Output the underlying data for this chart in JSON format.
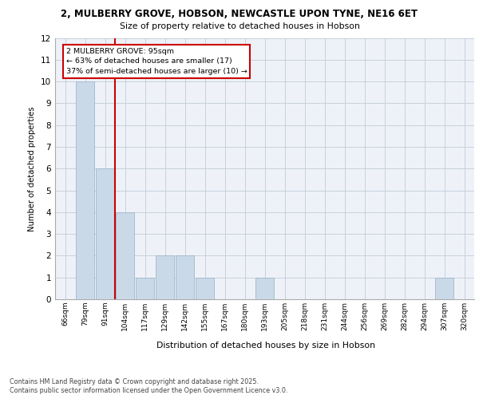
{
  "title1": "2, MULBERRY GROVE, HOBSON, NEWCASTLE UPON TYNE, NE16 6ET",
  "title2": "Size of property relative to detached houses in Hobson",
  "xlabel": "Distribution of detached houses by size in Hobson",
  "ylabel": "Number of detached properties",
  "categories": [
    "66sqm",
    "79sqm",
    "91sqm",
    "104sqm",
    "117sqm",
    "129sqm",
    "142sqm",
    "155sqm",
    "167sqm",
    "180sqm",
    "193sqm",
    "205sqm",
    "218sqm",
    "231sqm",
    "244sqm",
    "256sqm",
    "269sqm",
    "282sqm",
    "294sqm",
    "307sqm",
    "320sqm"
  ],
  "values": [
    0,
    10,
    6,
    4,
    1,
    2,
    2,
    1,
    0,
    0,
    1,
    0,
    0,
    0,
    0,
    0,
    0,
    0,
    0,
    1,
    0
  ],
  "bar_color": "#c9d9e8",
  "bar_edge_color": "#a0b8cc",
  "grid_color": "#c8d0dc",
  "bg_color": "#eef2f8",
  "vline_x": 2.5,
  "vline_color": "#cc0000",
  "annotation_text": "2 MULBERRY GROVE: 95sqm\n← 63% of detached houses are smaller (17)\n37% of semi-detached houses are larger (10) →",
  "annotation_box_color": "#cc0000",
  "ylim": [
    0,
    12
  ],
  "yticks": [
    0,
    1,
    2,
    3,
    4,
    5,
    6,
    7,
    8,
    9,
    10,
    11,
    12
  ],
  "footer1": "Contains HM Land Registry data © Crown copyright and database right 2025.",
  "footer2": "Contains public sector information licensed under the Open Government Licence v3.0."
}
